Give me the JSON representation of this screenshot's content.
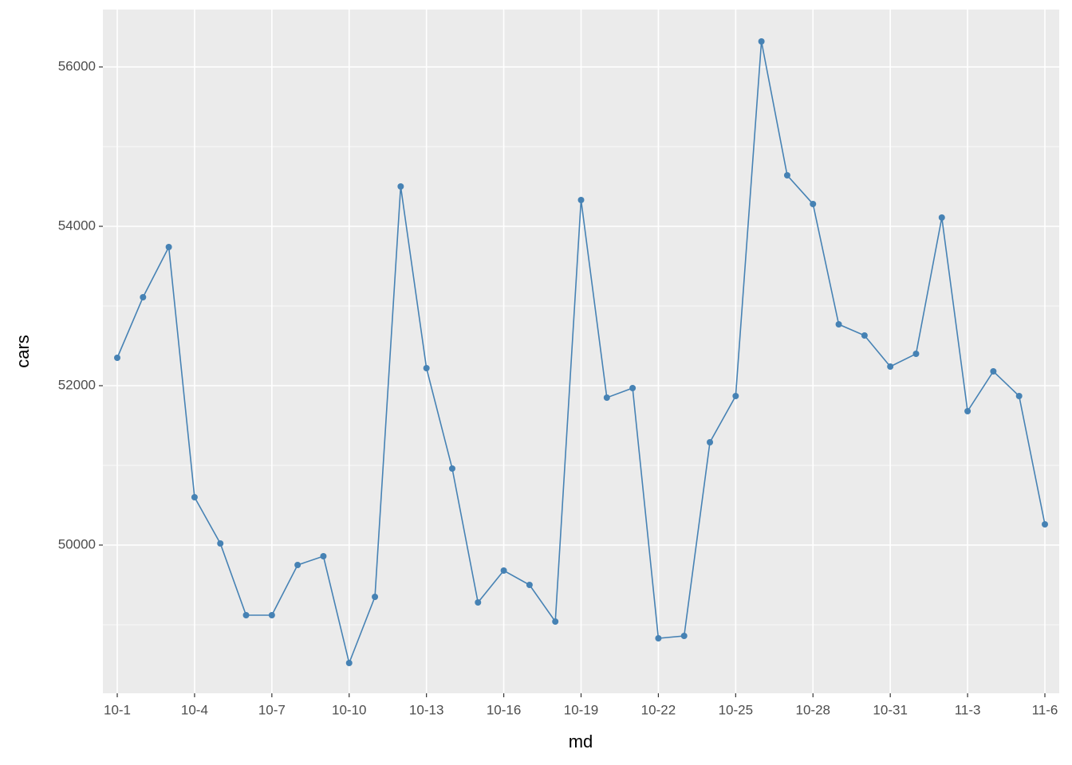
{
  "chart_data": {
    "type": "line",
    "x_label": "md",
    "y_label": "cars",
    "categories": [
      "10-1",
      null,
      null,
      "10-4",
      null,
      null,
      "10-7",
      null,
      null,
      "10-10",
      null,
      null,
      "10-13",
      null,
      null,
      "10-16",
      null,
      null,
      "10-19",
      null,
      null,
      "10-22",
      null,
      null,
      "10-25",
      null,
      null,
      "10-28",
      null,
      null,
      "10-31",
      null,
      null,
      "11-3",
      null,
      null,
      "11-6"
    ],
    "values": [
      52350,
      53110,
      53740,
      50600,
      50020,
      49120,
      49120,
      49750,
      49860,
      48520,
      49350,
      54500,
      52220,
      50960,
      49280,
      49680,
      49500,
      49040,
      54330,
      51850,
      51970,
      48830,
      48860,
      51290,
      51870,
      56320,
      54640,
      54280,
      52770,
      52630,
      52240,
      52400,
      54110,
      51680,
      52180,
      51870,
      50260
    ],
    "color": "#4682b4",
    "ylim": [
      48140,
      56720
    ],
    "yticks": [
      50000,
      52000,
      54000,
      56000
    ],
    "grid": true
  }
}
